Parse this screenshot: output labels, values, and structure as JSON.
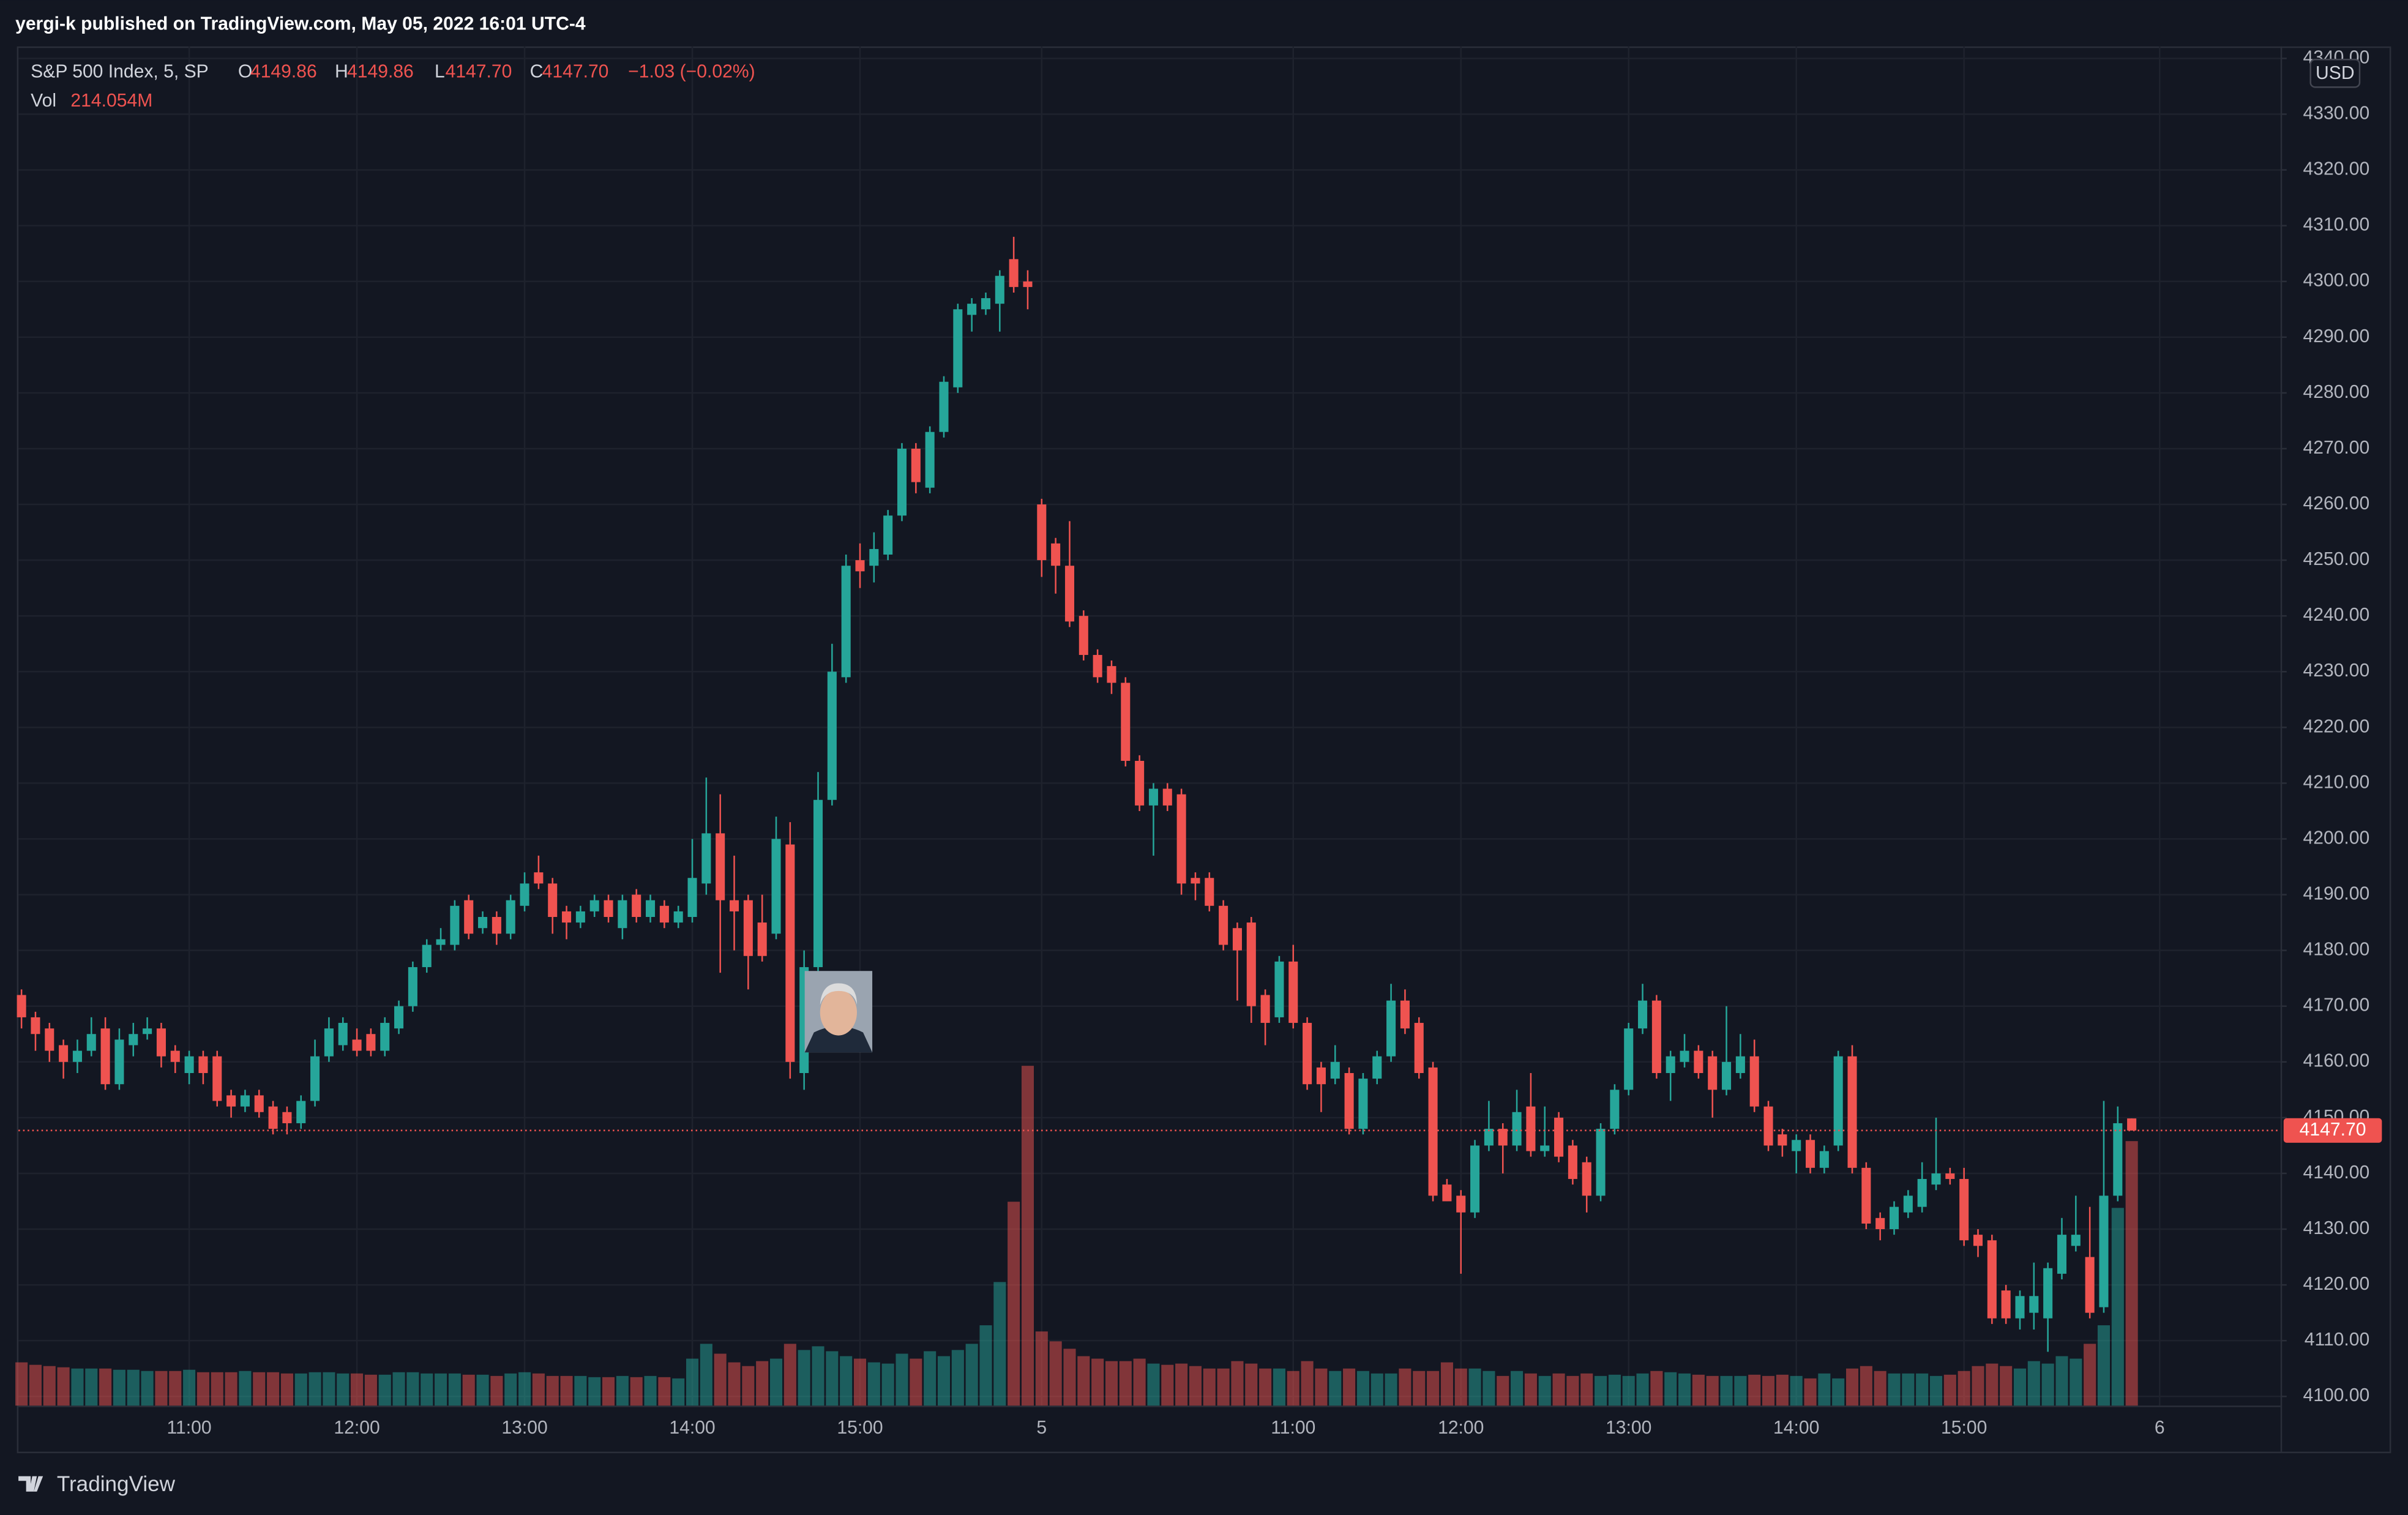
{
  "header": {
    "publisher": "yergi-k published on TradingView.com, May 05, 2022 16:01 UTC-4"
  },
  "chart_data": {
    "type": "candlestick",
    "legend": {
      "symbol": "S&P 500 Index, 5, SP",
      "open_key": "O",
      "open": "4149.86",
      "high_key": "H",
      "high": "4149.86",
      "low_key": "L",
      "low": "4147.70",
      "close_key": "C",
      "close": "4147.70",
      "change": "−1.03 (−0.02%)",
      "volume_key": "Vol",
      "volume": "214.054M"
    },
    "currency": "USD",
    "up_color": "#26a69a",
    "down_color": "#ef5350",
    "grid": true,
    "last_price": {
      "value": 4147.7,
      "label": "4147.70"
    },
    "ylim": [
      4098.35,
      4342.15
    ],
    "yticks": [
      {
        "value": 4100,
        "label": "4100.00"
      },
      {
        "value": 4110,
        "label": "4110.00"
      },
      {
        "value": 4120,
        "label": "4120.00"
      },
      {
        "value": 4130,
        "label": "4130.00"
      },
      {
        "value": 4140,
        "label": "4140.00"
      },
      {
        "value": 4150,
        "label": "4150.00"
      },
      {
        "value": 4160,
        "label": "4160.00"
      },
      {
        "value": 4170,
        "label": "4170.00"
      },
      {
        "value": 4180,
        "label": "4180.00"
      },
      {
        "value": 4190,
        "label": "4190.00"
      },
      {
        "value": 4200,
        "label": "4200.00"
      },
      {
        "value": 4210,
        "label": "4210.00"
      },
      {
        "value": 4220,
        "label": "4220.00"
      },
      {
        "value": 4230,
        "label": "4230.00"
      },
      {
        "value": 4240,
        "label": "4240.00"
      },
      {
        "value": 4250,
        "label": "4250.00"
      },
      {
        "value": 4260,
        "label": "4260.00"
      },
      {
        "value": 4270,
        "label": "4270.00"
      },
      {
        "value": 4280,
        "label": "4280.00"
      },
      {
        "value": 4290,
        "label": "4290.00"
      },
      {
        "value": 4300,
        "label": "4300.00"
      },
      {
        "value": 4310,
        "label": "4310.00"
      },
      {
        "value": 4320,
        "label": "4320.00"
      },
      {
        "value": 4330,
        "label": "4330.00"
      },
      {
        "value": 4340,
        "label": "4340.00"
      }
    ],
    "categories": [
      null,
      null,
      null,
      null,
      null,
      null,
      null,
      null,
      null,
      null,
      null,
      null,
      "11:00",
      null,
      null,
      null,
      null,
      null,
      null,
      null,
      null,
      null,
      null,
      null,
      "12:00",
      null,
      null,
      null,
      null,
      null,
      null,
      null,
      null,
      null,
      null,
      null,
      "13:00",
      null,
      null,
      null,
      null,
      null,
      null,
      null,
      null,
      null,
      null,
      null,
      "14:00",
      null,
      null,
      null,
      null,
      null,
      null,
      null,
      null,
      null,
      null,
      null,
      "15:00",
      null,
      null,
      null,
      null,
      null,
      null,
      null,
      null,
      null,
      null,
      null,
      null,
      "5",
      null,
      null,
      null,
      null,
      null,
      null,
      null,
      null,
      null,
      null,
      null,
      null,
      null,
      null,
      null,
      null,
      null,
      "11:00",
      null,
      null,
      null,
      null,
      null,
      null,
      null,
      null,
      null,
      null,
      null,
      "12:00",
      null,
      null,
      null,
      null,
      null,
      null,
      null,
      null,
      null,
      null,
      null,
      "13:00",
      null,
      null,
      null,
      null,
      null,
      null,
      null,
      null,
      null,
      null,
      null,
      "14:00",
      null,
      null,
      null,
      null,
      null,
      null,
      null,
      null,
      null,
      null,
      null,
      "15:00",
      null,
      null,
      null,
      null,
      null,
      null,
      null,
      null,
      null,
      null,
      null,
      null,
      null,
      "6"
    ],
    "open": [
      4172,
      4168,
      4166,
      4163,
      4160,
      4162,
      4166,
      4156,
      4163,
      4165,
      4166,
      4162,
      4158,
      4161,
      4161,
      4154,
      4152,
      4154,
      4152,
      4151,
      4149,
      4153,
      4161,
      4163,
      4164,
      4165,
      4162,
      4166,
      4170,
      4177,
      4181,
      4181,
      4189,
      4184,
      4186,
      4183,
      4188,
      4194,
      4192,
      4187,
      4185,
      4187,
      4189,
      4184,
      4190,
      4186,
      4188,
      4185,
      4186,
      4192,
      4201,
      4189,
      4189,
      4185,
      4183,
      4199,
      4158,
      4177,
      4207,
      4229,
      4250,
      4249,
      4251,
      4258,
      4270,
      4263,
      4273,
      4281,
      4294,
      4295,
      4296,
      4304,
      4300,
      4260,
      4253,
      4249,
      4240,
      4233,
      4231,
      4228,
      4214,
      4206,
      4209,
      4208,
      4193,
      4193,
      4188,
      4184,
      4185,
      4172,
      4168,
      4178,
      4167,
      4159,
      4157,
      4158,
      4148,
      4157,
      4161,
      4171,
      4167,
      4159,
      4138,
      4136,
      4133,
      4145,
      4148,
      4145,
      4152,
      4144,
      4150,
      4145,
      4142,
      4136,
      4148,
      4155,
      4166,
      4171,
      4158,
      4160,
      4162,
      4161,
      4155,
      4158,
      4161,
      4152,
      4147,
      4144,
      4146,
      4141,
      4145,
      4161,
      4141,
      4132,
      4130,
      4133,
      4134,
      4138,
      4140,
      4139,
      4129,
      4128,
      4119,
      4114,
      4115,
      4114,
      4122,
      4127,
      4125,
      4116,
      4136,
      4149.86,
      null,
      null
    ],
    "high": [
      4173,
      4169,
      4167,
      4164,
      4164,
      4168,
      4168,
      4166,
      4167,
      4168,
      4167,
      4163,
      4162,
      4162,
      4162,
      4155,
      4155,
      4155,
      4153,
      4152,
      4154,
      4164,
      4168,
      4168,
      4166,
      4166,
      4168,
      4171,
      4178,
      4182,
      4184,
      4189,
      4190,
      4187,
      4187,
      4190,
      4194,
      4197,
      4193,
      4188,
      4188,
      4190,
      4190,
      4190,
      4191,
      4190,
      4189,
      4188,
      4200,
      4211,
      4208,
      4197,
      4190,
      4190,
      4204,
      4203,
      4180,
      4212,
      4235,
      4251,
      4253,
      4255,
      4259,
      4271,
      4271,
      4274,
      4283,
      4296,
      4297,
      4298,
      4302,
      4308,
      4302,
      4261,
      4254,
      4257,
      4241,
      4234,
      4232,
      4229,
      4215,
      4210,
      4210,
      4209,
      4194,
      4194,
      4189,
      4185,
      4186,
      4173,
      4179,
      4181,
      4168,
      4160,
      4163,
      4159,
      4158,
      4162,
      4174,
      4173,
      4168,
      4160,
      4139,
      4137,
      4146,
      4153,
      4149,
      4155,
      4158,
      4152,
      4151,
      4146,
      4143,
      4149,
      4156,
      4167,
      4174,
      4172,
      4162,
      4165,
      4163,
      4162,
      4170,
      4165,
      4164,
      4153,
      4148,
      4147,
      4147,
      4145,
      4162,
      4163,
      4142,
      4133,
      4135,
      4137,
      4142,
      4150,
      4141,
      4141,
      4130,
      4129,
      4120,
      4119,
      4124,
      4124,
      4132,
      4136,
      4134,
      4153,
      4152,
      4149.86,
      null,
      null
    ],
    "low": [
      4166,
      4162,
      4160,
      4157,
      4158,
      4161,
      4155,
      4155,
      4161,
      4164,
      4159,
      4158,
      4156,
      4156,
      4152,
      4150,
      4151,
      4150,
      4147,
      4147,
      4148,
      4152,
      4160,
      4162,
      4161,
      4161,
      4161,
      4165,
      4169,
      4176,
      4180,
      4180,
      4182,
      4183,
      4181,
      4182,
      4187,
      4191,
      4183,
      4182,
      4184,
      4186,
      4185,
      4182,
      4185,
      4185,
      4184,
      4184,
      4185,
      4190,
      4176,
      4180,
      4173,
      4178,
      4182,
      4157,
      4155,
      4176,
      4206,
      4228,
      4245,
      4246,
      4250,
      4257,
      4262,
      4262,
      4272,
      4280,
      4291,
      4294,
      4291,
      4298,
      4295,
      4247,
      4244,
      4238,
      4232,
      4228,
      4226,
      4213,
      4205,
      4197,
      4205,
      4190,
      4189,
      4187,
      4180,
      4171,
      4167,
      4163,
      4167,
      4166,
      4155,
      4151,
      4156,
      4147,
      4147,
      4156,
      4160,
      4165,
      4157,
      4135,
      4135,
      4122,
      4132,
      4144,
      4140,
      4144,
      4143,
      4143,
      4142,
      4138,
      4133,
      4135,
      4147,
      4154,
      4165,
      4157,
      4153,
      4159,
      4157,
      4150,
      4154,
      4157,
      4151,
      4144,
      4143,
      4140,
      4140,
      4140,
      4144,
      4140,
      4130,
      4128,
      4129,
      4132,
      4133,
      4137,
      4138,
      4127,
      4125,
      4113,
      4113,
      4112,
      4112,
      4108,
      4121,
      4126,
      4114,
      4115,
      4135,
      4147.7,
      null,
      null
    ],
    "close": [
      4168,
      4165,
      4162,
      4160,
      4162,
      4165,
      4156,
      4164,
      4165,
      4166,
      4161,
      4160,
      4161,
      4158,
      4153,
      4152,
      4154,
      4151,
      4148,
      4149,
      4153,
      4161,
      4166,
      4167,
      4162,
      4162,
      4167,
      4170,
      4177,
      4181,
      4182,
      4188,
      4183,
      4186,
      4183,
      4189,
      4192,
      4192,
      4186,
      4185,
      4187,
      4189,
      4186,
      4189,
      4186,
      4189,
      4185,
      4187,
      4193,
      4201,
      4189,
      4187,
      4179,
      4179,
      4200,
      4160,
      4177,
      4207,
      4230,
      4249,
      4248,
      4252,
      4258,
      4270,
      4264,
      4273,
      4282,
      4295,
      4296,
      4297,
      4301,
      4299,
      4299,
      4250,
      4249,
      4239,
      4233,
      4229,
      4228,
      4214,
      4206,
      4209,
      4206,
      4192,
      4192,
      4188,
      4181,
      4180,
      4170,
      4167,
      4178,
      4167,
      4156,
      4156,
      4160,
      4148,
      4157,
      4161,
      4171,
      4166,
      4158,
      4136,
      4135,
      4133,
      4145,
      4148,
      4145,
      4151,
      4144,
      4145,
      4143,
      4139,
      4136,
      4148,
      4155,
      4166,
      4171,
      4158,
      4161,
      4162,
      4158,
      4155,
      4160,
      4161,
      4152,
      4145,
      4145,
      4146,
      4141,
      4144,
      4161,
      4141,
      4131,
      4130,
      4134,
      4136,
      4139,
      4140,
      4139,
      4128,
      4127,
      4114,
      4114,
      4118,
      4118,
      4123,
      4129,
      4129,
      4115,
      4136,
      4149,
      4147.7,
      null,
      null
    ],
    "volume": [
      35,
      33,
      32,
      31,
      30,
      30,
      30,
      29,
      29,
      28,
      28,
      28,
      29,
      27,
      27,
      27,
      28,
      27,
      27,
      26,
      26,
      27,
      27,
      26,
      26,
      25,
      25,
      27,
      27,
      26,
      26,
      26,
      25,
      25,
      24,
      26,
      27,
      26,
      24,
      24,
      24,
      23,
      23,
      24,
      23,
      24,
      23,
      22,
      38,
      50,
      42,
      35,
      32,
      36,
      38,
      50,
      45,
      48,
      44,
      40,
      38,
      35,
      34,
      42,
      38,
      44,
      40,
      45,
      50,
      65,
      100,
      165,
      275,
      60,
      52,
      46,
      40,
      38,
      36,
      36,
      38,
      34,
      33,
      34,
      32,
      30,
      30,
      36,
      34,
      30,
      30,
      28,
      36,
      30,
      28,
      30,
      28,
      26,
      26,
      30,
      28,
      28,
      35,
      30,
      30,
      28,
      24,
      28,
      26,
      24,
      26,
      24,
      26,
      24,
      25,
      24,
      26,
      28,
      27,
      26,
      25,
      24,
      24,
      24,
      25,
      24,
      25,
      24,
      22,
      26,
      22,
      30,
      32,
      28,
      26,
      26,
      26,
      24,
      25,
      28,
      32,
      34,
      32,
      30,
      36,
      34,
      40,
      38,
      50,
      65,
      160,
      214.054,
      null,
      null
    ]
  },
  "footer": {
    "brand": "TradingView"
  }
}
